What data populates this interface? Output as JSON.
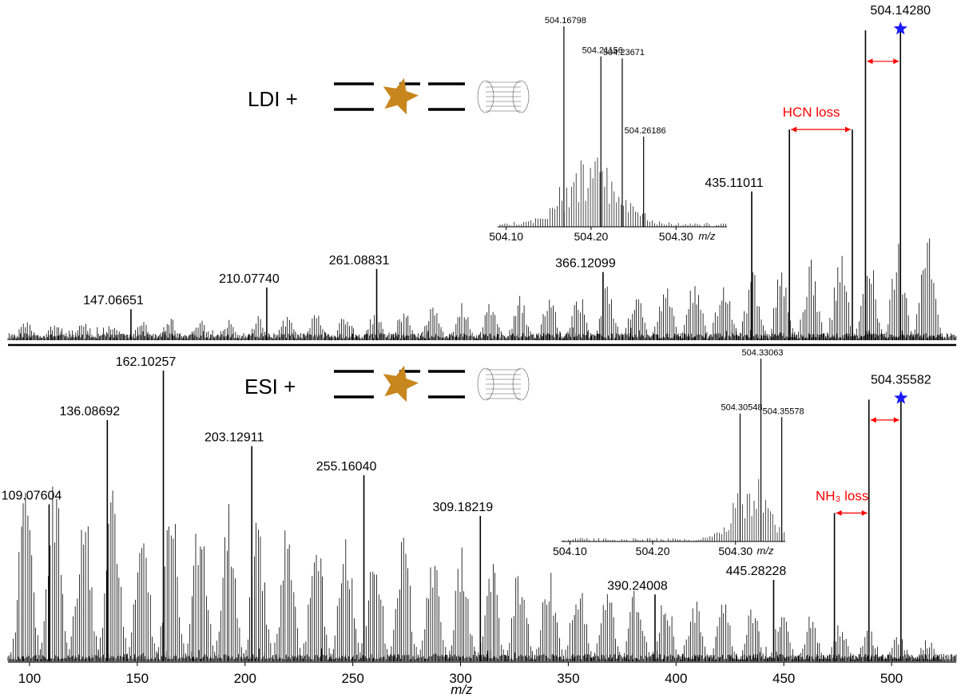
{
  "colors": {
    "spectrum": "#000000",
    "loss": "#ff0000",
    "star_marker": "#1a1aff",
    "molecule_star": "#c8861e",
    "background": "#ffffff"
  },
  "chart_data": [
    {
      "type": "line",
      "name": "LDI spectrum",
      "method_label": "LDI +",
      "xlabel": "m/z",
      "xlim": [
        90,
        530
      ],
      "ylim": [
        0,
        100
      ],
      "grid": false,
      "peaks": [
        {
          "mz": 147.06651,
          "rel": 10,
          "label": "147.06651"
        },
        {
          "mz": 210.0774,
          "rel": 17,
          "label": "210.07740"
        },
        {
          "mz": 261.08831,
          "rel": 23,
          "label": "261.08831"
        },
        {
          "mz": 366.12099,
          "rel": 22,
          "label": "366.12099"
        },
        {
          "mz": 435.11011,
          "rel": 48,
          "label": "435.11011"
        },
        {
          "mz": 452.6,
          "rel": 68,
          "label": ""
        },
        {
          "mz": 481.8,
          "rel": 68,
          "label": ""
        },
        {
          "mz": 487.9,
          "rel": 100,
          "label": ""
        },
        {
          "mz": 504.1428,
          "rel": 100,
          "label": "504.14280"
        }
      ],
      "annotations": [
        {
          "text": "HCN loss",
          "from_mz": 452.6,
          "to_mz": 481.8,
          "at_rel": 68
        },
        {
          "text": "",
          "from_mz": 487.9,
          "to_mz": 504.1428,
          "at_rel": 90
        }
      ],
      "inset": {
        "xlabel": "m/z",
        "xlim": [
          504.09,
          504.36
        ],
        "xticks": [
          "504.10",
          "504.20",
          "504.30"
        ],
        "peaks": [
          {
            "mz": 504.16798,
            "rel": 100,
            "label": "504.16798"
          },
          {
            "mz": 504.21156,
            "rel": 85,
            "label": "504.21156"
          },
          {
            "mz": 504.23671,
            "rel": 84,
            "label": "504.23671"
          },
          {
            "mz": 504.26186,
            "rel": 45,
            "label": "504.26186"
          }
        ]
      }
    },
    {
      "type": "line",
      "name": "ESI spectrum",
      "method_label": "ESI +",
      "xlabel": "m/z",
      "xlim": [
        90,
        530
      ],
      "xticks": [
        "100",
        "150",
        "200",
        "250",
        "300",
        "350",
        "400",
        "450",
        "500"
      ],
      "ylim": [
        0,
        100
      ],
      "grid": false,
      "peaks": [
        {
          "mz": 109.07604,
          "rel": 54,
          "label": "109.07604"
        },
        {
          "mz": 136.08692,
          "rel": 83,
          "label": "136.08692"
        },
        {
          "mz": 162.10257,
          "rel": 100,
          "label": "162.10257"
        },
        {
          "mz": 203.12911,
          "rel": 74,
          "label": "203.12911"
        },
        {
          "mz": 255.1604,
          "rel": 64,
          "label": "255.16040"
        },
        {
          "mz": 309.18219,
          "rel": 50,
          "label": "309.18219"
        },
        {
          "mz": 390.24008,
          "rel": 23,
          "label": "390.24008"
        },
        {
          "mz": 445.28228,
          "rel": 28,
          "label": "445.28228"
        },
        {
          "mz": 473.5,
          "rel": 51,
          "label": ""
        },
        {
          "mz": 489.5,
          "rel": 90,
          "label": ""
        },
        {
          "mz": 504.35582,
          "rel": 90,
          "label": "504.35582"
        }
      ],
      "annotations": [
        {
          "text": "NH₃ loss",
          "from_mz": 473.5,
          "to_mz": 489.5,
          "at_rel": 51
        },
        {
          "text": "",
          "from_mz": 489.5,
          "to_mz": 504.35582,
          "at_rel": 83
        }
      ],
      "inset": {
        "xlabel": "m/z",
        "xlim": [
          504.09,
          504.36
        ],
        "xticks": [
          "504.10",
          "504.20",
          "504.30"
        ],
        "peaks": [
          {
            "mz": 504.30548,
            "rel": 70,
            "label": "504.30548"
          },
          {
            "mz": 504.33063,
            "rel": 100,
            "label": "504.33063"
          },
          {
            "mz": 504.35578,
            "rel": 68,
            "label": "504.35578"
          }
        ]
      }
    }
  ]
}
